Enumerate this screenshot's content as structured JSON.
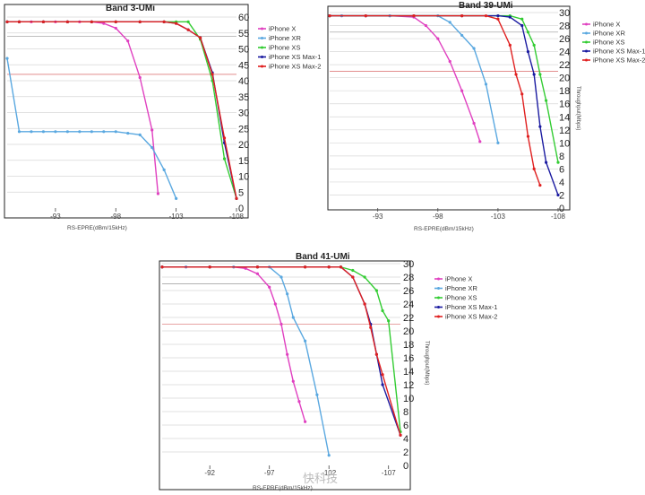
{
  "watermark": "快科技",
  "colors": {
    "iPhone X": "#e040c0",
    "iPhone XR": "#5aa8e0",
    "iPhone XS": "#33cc33",
    "iPhone XS Max-1": "#1a1aa0",
    "iPhone XS Max-2": "#e02020"
  },
  "chart_data": [
    {
      "type": "line",
      "title": "Band 3-UMi",
      "xlabel": "RS-EPRE(dBm/15kHz)",
      "ylabel": "",
      "x_ticks": [
        -93,
        -98,
        -103,
        -108
      ],
      "xlim": [
        -89,
        -108
      ],
      "ylim": [
        0,
        60
      ],
      "y_ticks": [
        0,
        5,
        10,
        15,
        20,
        25,
        30,
        35,
        40,
        45,
        50,
        55,
        60
      ],
      "legend_position": "top-right",
      "series": [
        {
          "name": "iPhone X",
          "x": [
            -89,
            -90,
            -91,
            -92,
            -93,
            -94,
            -95,
            -96,
            -97,
            -98,
            -99,
            -100,
            -101,
            -101.5
          ],
          "y": [
            58.5,
            58.5,
            58.5,
            58.5,
            58.5,
            58.5,
            58.5,
            58.5,
            58,
            56.5,
            52.5,
            41,
            24.5,
            4.5
          ]
        },
        {
          "name": "iPhone XR",
          "x": [
            -89,
            -90,
            -91,
            -92,
            -93,
            -94,
            -95,
            -96,
            -97,
            -98,
            -99,
            -100,
            -101,
            -102,
            -103
          ],
          "y": [
            47,
            24,
            24,
            24,
            24,
            24,
            24,
            24,
            24,
            24,
            23.5,
            23,
            19,
            12,
            3
          ]
        },
        {
          "name": "iPhone XS",
          "x": [
            -89,
            -90,
            -92,
            -94,
            -96,
            -98,
            -100,
            -102,
            -103,
            -104,
            -105,
            -106,
            -107,
            -108
          ],
          "y": [
            58.5,
            58.5,
            58.5,
            58.5,
            58.5,
            58.5,
            58.5,
            58.5,
            58.5,
            58.5,
            53,
            40,
            15.5,
            3
          ]
        },
        {
          "name": "iPhone XS Max-1",
          "x": [
            -89,
            -90,
            -92,
            -94,
            -96,
            -98,
            -100,
            -102,
            -103,
            -104,
            -105,
            -106,
            -107,
            -108
          ],
          "y": [
            58.5,
            58.5,
            58.5,
            58.5,
            58.5,
            58.5,
            58.5,
            58.5,
            58,
            56,
            53.5,
            42.5,
            20.5,
            3
          ]
        },
        {
          "name": "iPhone XS Max-2",
          "x": [
            -89,
            -90,
            -92,
            -94,
            -96,
            -98,
            -100,
            -102,
            -103,
            -104,
            -105,
            -106,
            -107,
            -108
          ],
          "y": [
            58.5,
            58.5,
            58.5,
            58.5,
            58.5,
            58.5,
            58.5,
            58.5,
            58,
            56,
            53.5,
            42,
            22,
            3
          ]
        }
      ]
    },
    {
      "type": "line",
      "title": "Band 39-UMi",
      "xlabel": "RS-EPRE(dBm/15kHz)",
      "ylabel": "Throughput(Mbps)",
      "x_ticks": [
        -93,
        -98,
        -103,
        -108
      ],
      "xlim": [
        -89,
        -108
      ],
      "ylim": [
        0,
        30
      ],
      "y_ticks": [
        0,
        2,
        4,
        6,
        8,
        10,
        12,
        14,
        16,
        18,
        20,
        22,
        24,
        26,
        28,
        30
      ],
      "legend_position": "top-right",
      "series": [
        {
          "name": "iPhone X",
          "x": [
            -89,
            -90,
            -92,
            -94,
            -96,
            -97,
            -98,
            -99,
            -100,
            -101,
            -101.5
          ],
          "y": [
            29.5,
            29.5,
            29.5,
            29.5,
            29.3,
            28,
            26,
            22.5,
            18,
            13,
            10.2
          ]
        },
        {
          "name": "iPhone XR",
          "x": [
            -89,
            -90,
            -92,
            -94,
            -96,
            -98,
            -99,
            -100,
            -101,
            -102,
            -103
          ],
          "y": [
            29.5,
            29.5,
            29.5,
            29.5,
            29.5,
            29.5,
            28.5,
            26.5,
            24.5,
            19,
            10
          ]
        },
        {
          "name": "iPhone XS",
          "x": [
            -89,
            -92,
            -96,
            -100,
            -103,
            -104,
            -105,
            -105.5,
            -106,
            -106.5,
            -107,
            -108
          ],
          "y": [
            29.5,
            29.5,
            29.5,
            29.5,
            29.5,
            29.5,
            29,
            27,
            25,
            20.5,
            16.5,
            7
          ]
        },
        {
          "name": "iPhone XS Max-1",
          "x": [
            -89,
            -92,
            -96,
            -100,
            -103,
            -104,
            -105,
            -105.5,
            -106,
            -106.5,
            -107,
            -108
          ],
          "y": [
            29.5,
            29.5,
            29.5,
            29.5,
            29.5,
            29.3,
            28,
            24,
            20.5,
            12.5,
            7,
            2
          ]
        },
        {
          "name": "iPhone XS Max-2",
          "x": [
            -89,
            -92,
            -96,
            -100,
            -102,
            -103,
            -104,
            -104.5,
            -105,
            -105.5,
            -106,
            -106.5
          ],
          "y": [
            29.5,
            29.5,
            29.5,
            29.5,
            29.5,
            29,
            25,
            20.5,
            17.5,
            11,
            6,
            3.5
          ]
        }
      ]
    },
    {
      "type": "line",
      "title": "Band 41-UMi",
      "xlabel": "RS-EPRE(dBm/15kHz)",
      "ylabel": "Throughput(Mbps)",
      "x_ticks": [
        -92,
        -97,
        -102,
        -107
      ],
      "xlim": [
        -88,
        -108
      ],
      "ylim": [
        0,
        30
      ],
      "y_ticks": [
        0,
        2,
        4,
        6,
        8,
        10,
        12,
        14,
        16,
        18,
        20,
        22,
        24,
        26,
        28,
        30
      ],
      "legend_position": "top-right",
      "series": [
        {
          "name": "iPhone X",
          "x": [
            -88,
            -90,
            -92,
            -94,
            -95,
            -96,
            -97,
            -97.5,
            -98,
            -98.5,
            -99,
            -99.5,
            -100
          ],
          "y": [
            29.5,
            29.5,
            29.5,
            29.5,
            29.3,
            28.5,
            26.5,
            24,
            21,
            16.5,
            12.5,
            9.5,
            6.5
          ]
        },
        {
          "name": "iPhone XR",
          "x": [
            -88,
            -90,
            -92,
            -94,
            -96,
            -97,
            -98,
            -98.5,
            -99,
            -100,
            -101,
            -102
          ],
          "y": [
            29.5,
            29.5,
            29.5,
            29.5,
            29.5,
            29.5,
            28,
            25.5,
            22,
            18.5,
            10.5,
            1.5
          ]
        },
        {
          "name": "iPhone XS",
          "x": [
            -88,
            -92,
            -96,
            -100,
            -102,
            -103,
            -104,
            -105,
            -106,
            -106.5,
            -107,
            -108
          ],
          "y": [
            29.5,
            29.5,
            29.5,
            29.5,
            29.5,
            29.5,
            29,
            28,
            26,
            23,
            21.5,
            5
          ]
        },
        {
          "name": "iPhone XS Max-1",
          "x": [
            -88,
            -92,
            -96,
            -100,
            -102,
            -103,
            -104,
            -105,
            -105.5,
            -106,
            -106.5,
            -108
          ],
          "y": [
            29.5,
            29.5,
            29.5,
            29.5,
            29.5,
            29.5,
            28,
            24,
            21,
            16.5,
            12,
            4.5
          ]
        },
        {
          "name": "iPhone XS Max-2",
          "x": [
            -88,
            -92,
            -96,
            -100,
            -102,
            -103,
            -104,
            -105,
            -105.5,
            -106,
            -106.5,
            -108
          ],
          "y": [
            29.5,
            29.5,
            29.5,
            29.5,
            29.5,
            29.5,
            28,
            24,
            20.5,
            16.5,
            13.5,
            4.5
          ]
        }
      ]
    }
  ]
}
